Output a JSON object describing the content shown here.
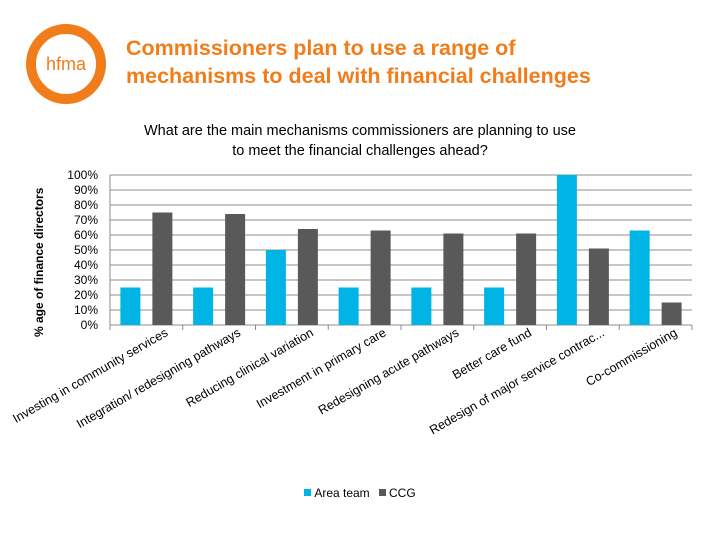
{
  "header": {
    "logo_text": "hfma",
    "title_line1": "Commissioners plan to use a range of",
    "title_line2": "mechanisms to deal with financial challenges"
  },
  "colors": {
    "brand_orange": "#f07d1a",
    "area_team": "#00b4e6",
    "ccg": "#595959"
  },
  "chart_data": {
    "type": "bar",
    "title_line1": "What are the main mechanisms commissioners are planning to use",
    "title_line2": "to meet the financial challenges ahead?",
    "ylabel": "% age of finance directors",
    "xlabel": "",
    "ylim": [
      0,
      100
    ],
    "yticks": [
      "0%",
      "10%",
      "20%",
      "30%",
      "40%",
      "50%",
      "60%",
      "70%",
      "80%",
      "90%",
      "100%"
    ],
    "grid": true,
    "legend_position": "bottom",
    "categories": [
      "Investing in community services",
      "Integration/ redesigning pathways",
      "Reducing clinical variation",
      "Investment in primary care",
      "Redesigning acute pathways",
      "Better care fund",
      "Redesign of major service contrac...",
      "Co-commissioning"
    ],
    "series": [
      {
        "name": "Area team",
        "values": [
          25,
          25,
          50,
          25,
          25,
          25,
          100,
          63
        ]
      },
      {
        "name": "CCG",
        "values": [
          75,
          74,
          64,
          63,
          61,
          61,
          51,
          15
        ]
      }
    ]
  }
}
